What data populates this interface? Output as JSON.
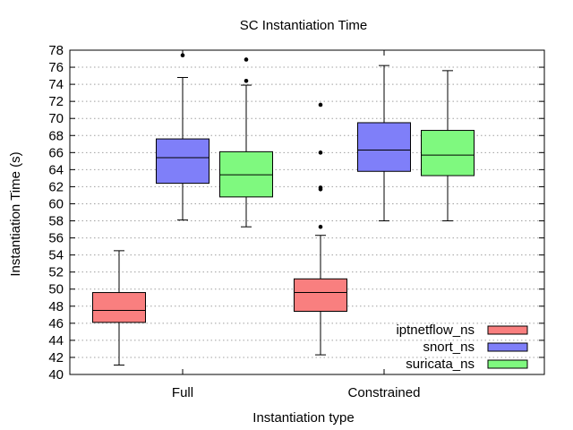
{
  "chart_data": {
    "type": "boxplot",
    "title": "SC Instantiation Time",
    "xlabel": "Instantiation type",
    "ylabel": "Instantiation Time (s)",
    "ylim": [
      40,
      78
    ],
    "yticks": [
      40,
      42,
      44,
      46,
      48,
      50,
      52,
      54,
      56,
      58,
      60,
      62,
      64,
      66,
      68,
      70,
      72,
      74,
      76,
      78
    ],
    "grid": true,
    "legend_position": "bottom-right",
    "categories": [
      "Full",
      "Constrained"
    ],
    "series": [
      {
        "name": "iptnetflow_ns",
        "color": "#f97f7f",
        "boxes": [
          {
            "category": "Full",
            "whisker_low": 41.1,
            "q1": 46.1,
            "median": 47.5,
            "q3": 49.6,
            "whisker_high": 54.5,
            "outliers": []
          },
          {
            "category": "Constrained",
            "whisker_low": 42.3,
            "q1": 47.4,
            "median": 49.6,
            "q3": 51.2,
            "whisker_high": 56.3,
            "outliers": [
              57.3,
              61.7,
              61.9,
              66.0,
              71.6
            ]
          }
        ]
      },
      {
        "name": "snort_ns",
        "color": "#7f7ff9",
        "boxes": [
          {
            "category": "Full",
            "whisker_low": 58.1,
            "q1": 62.4,
            "median": 65.4,
            "q3": 67.6,
            "whisker_high": 74.8,
            "outliers": [
              77.4
            ]
          },
          {
            "category": "Constrained",
            "whisker_low": 58.0,
            "q1": 63.8,
            "median": 66.3,
            "q3": 69.5,
            "whisker_high": 76.2,
            "outliers": []
          }
        ]
      },
      {
        "name": "suricata_ns",
        "color": "#7ff97f",
        "boxes": [
          {
            "category": "Full",
            "whisker_low": 57.3,
            "q1": 60.8,
            "median": 63.4,
            "q3": 66.1,
            "whisker_high": 73.9,
            "outliers": [
              74.4,
              76.9
            ]
          },
          {
            "category": "Constrained",
            "whisker_low": 58.0,
            "q1": 63.3,
            "median": 65.7,
            "q3": 68.6,
            "whisker_high": 75.6,
            "outliers": []
          }
        ]
      }
    ]
  }
}
